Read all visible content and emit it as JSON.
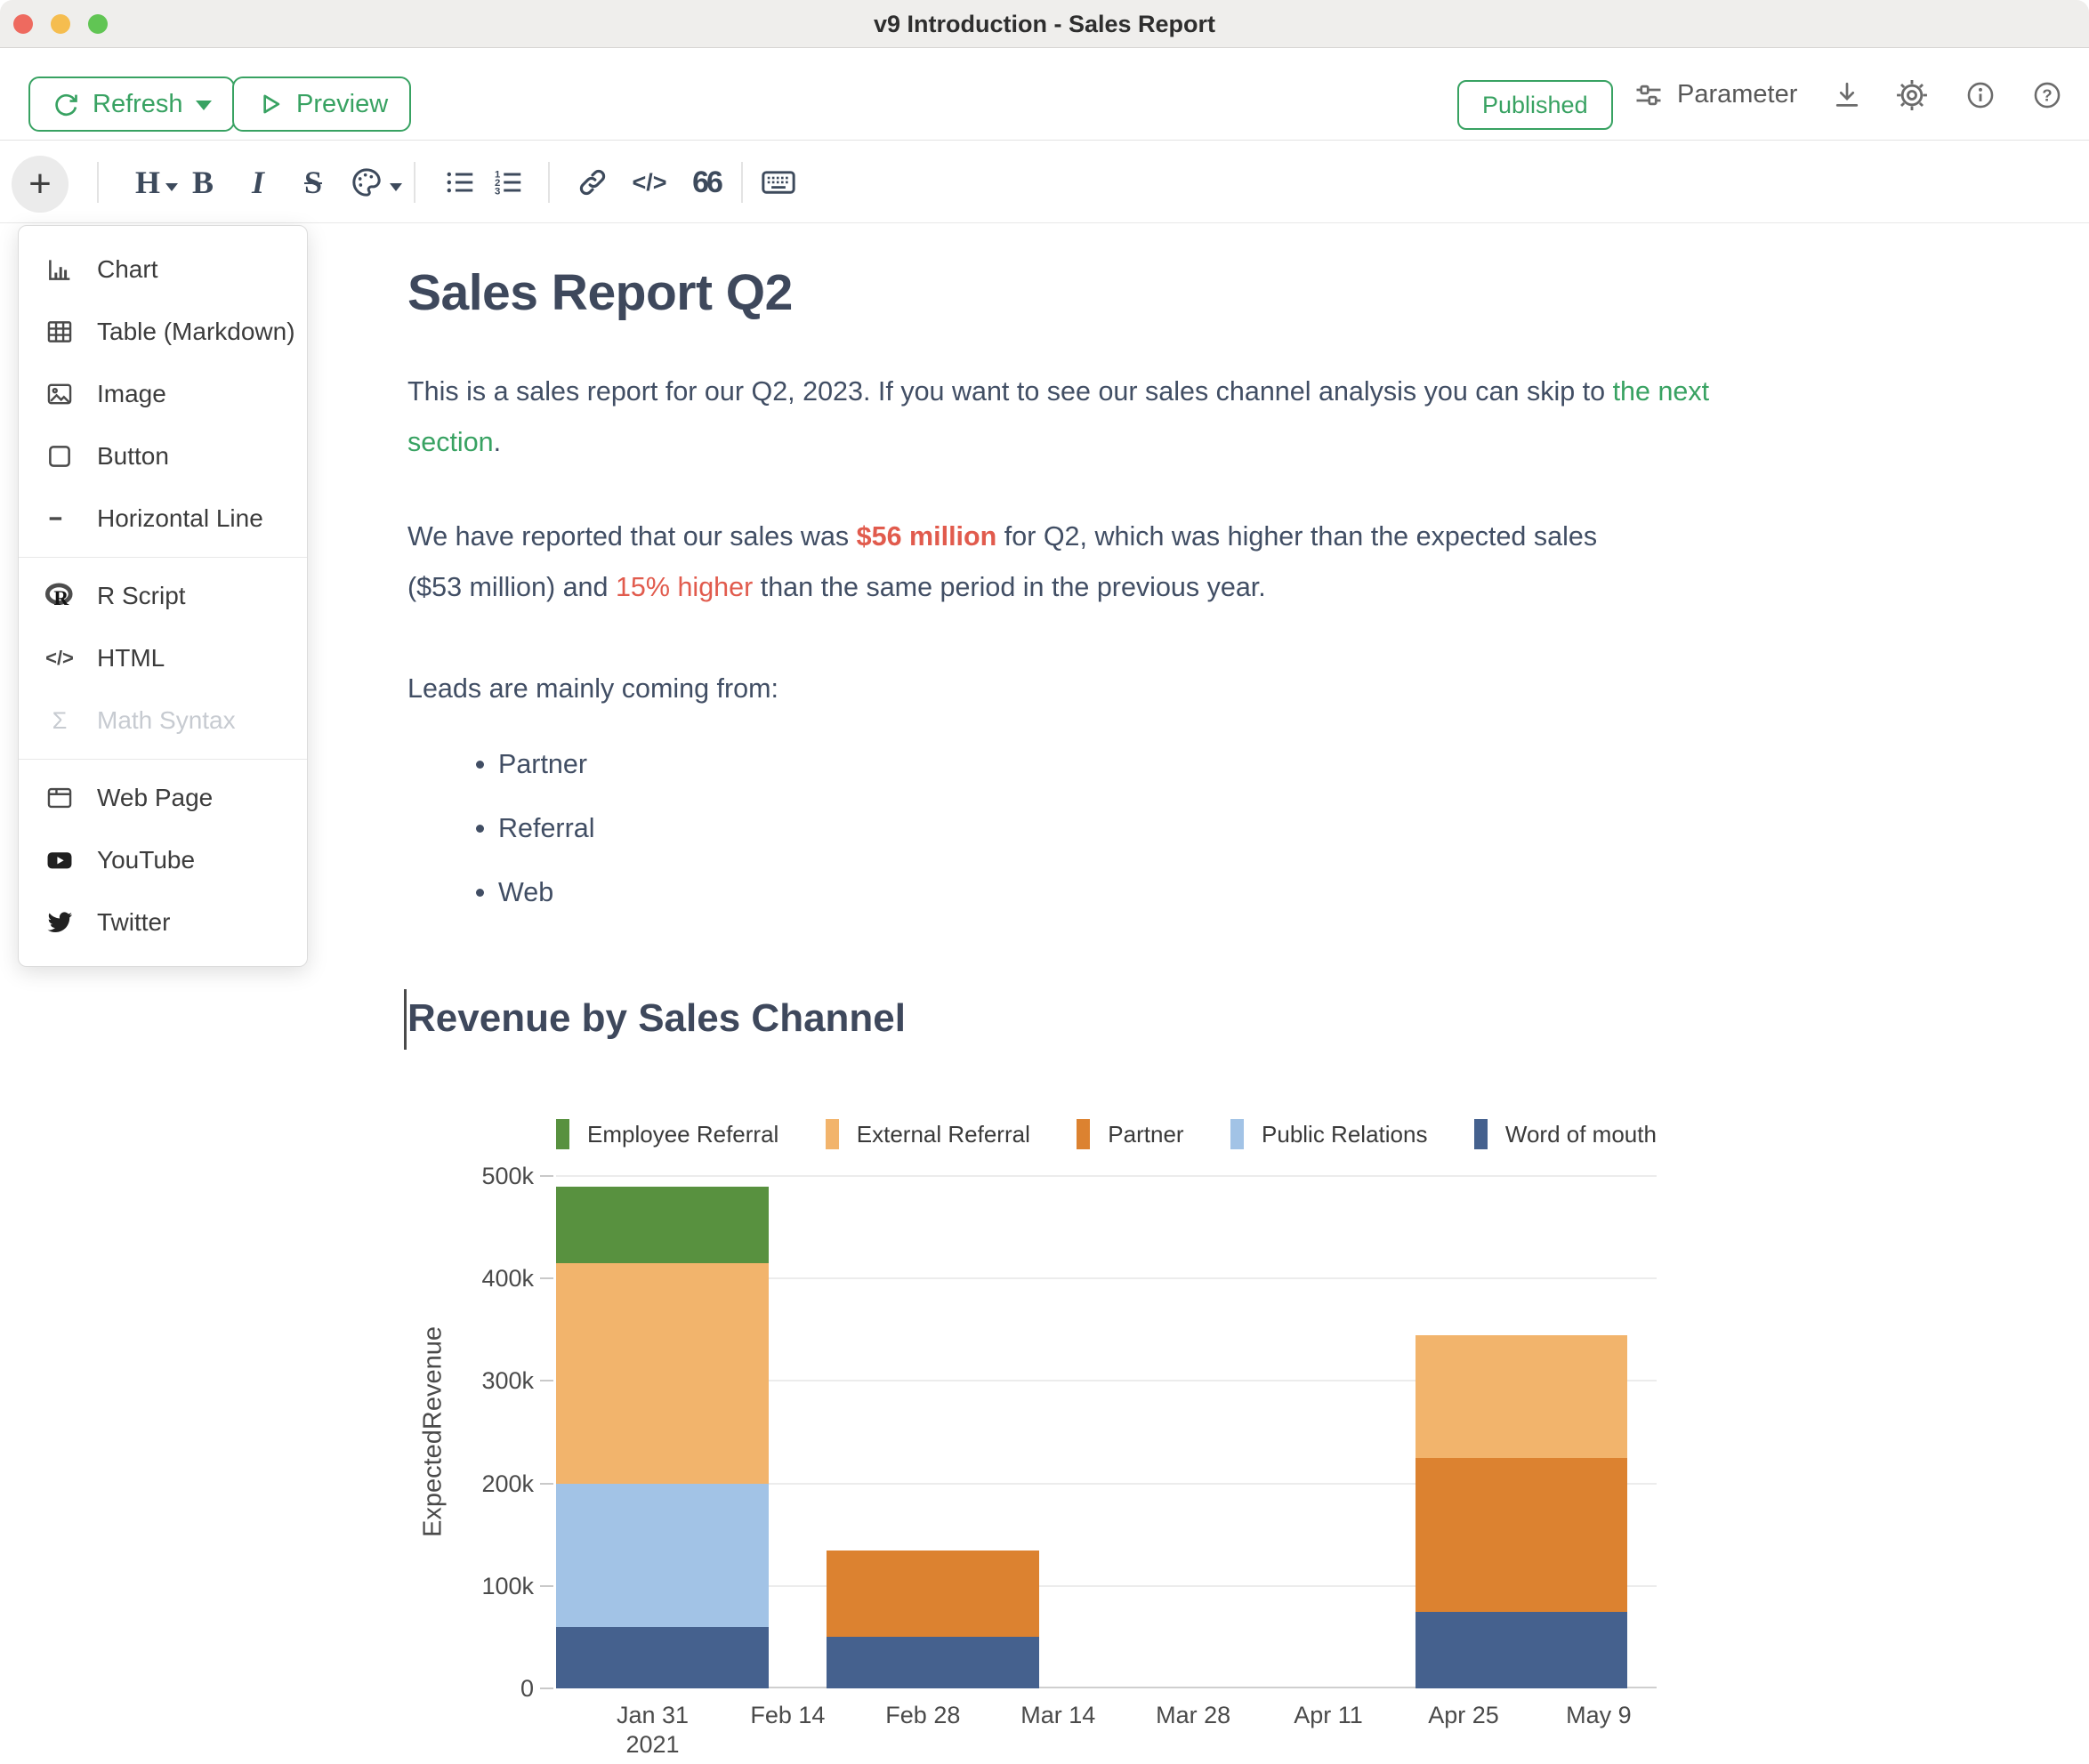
{
  "titlebar": {
    "title": "v9 Introduction - Sales Report"
  },
  "toolbar": {
    "refresh": "Refresh",
    "preview": "Preview",
    "published": "Published",
    "parameter": "Parameter"
  },
  "insert_menu": {
    "groups": [
      {
        "items": [
          {
            "label": "Chart"
          },
          {
            "label": "Table (Markdown)"
          },
          {
            "label": "Image"
          },
          {
            "label": "Button"
          },
          {
            "label": "Horizontal Line"
          }
        ]
      },
      {
        "items": [
          {
            "label": "R Script"
          },
          {
            "label": "HTML"
          },
          {
            "label": "Math Syntax",
            "disabled": true
          }
        ]
      },
      {
        "items": [
          {
            "label": "Web Page"
          },
          {
            "label": "YouTube"
          },
          {
            "label": "Twitter"
          }
        ]
      }
    ]
  },
  "document": {
    "title": "Sales Report Q2",
    "para1": {
      "before_link": "This is a sales report for our Q2, 2023. If you want to see our sales channel analysis you can skip to ",
      "link": "the next section",
      "after_link": "."
    },
    "para2": {
      "part1": "We have reported that our sales was ",
      "highlight1": "$56 million",
      "part2": " for Q2, which was higher than the expected sales ($53 million) and ",
      "highlight2": "15% higher",
      "part3": " than the same period in the previous year."
    },
    "para3": "Leads are mainly coming from:",
    "bullets": [
      "Partner",
      "Referral",
      "Web"
    ],
    "section_heading": "Revenue by Sales Channel"
  },
  "chart_data": {
    "type": "bar",
    "stacked": true,
    "title": "",
    "xlabel": "",
    "ylabel": "ExpectedRevenue",
    "ylim": [
      0,
      500000
    ],
    "grid": true,
    "legend_position": "top",
    "yticks": [
      {
        "v": 0,
        "label": "0"
      },
      {
        "v": 100000,
        "label": "100k"
      },
      {
        "v": 200000,
        "label": "200k"
      },
      {
        "v": 300000,
        "label": "300k"
      },
      {
        "v": 400000,
        "label": "400k"
      },
      {
        "v": 500000,
        "label": "500k"
      }
    ],
    "x_axis": {
      "start_date": "2021-01-21",
      "end_date": "2021-05-15",
      "total_days": 114,
      "ticks": [
        {
          "day": 10,
          "label": "Jan 31",
          "sublabel": "2021"
        },
        {
          "day": 24,
          "label": "Feb 14"
        },
        {
          "day": 38,
          "label": "Feb 28"
        },
        {
          "day": 52,
          "label": "Mar 14"
        },
        {
          "day": 66,
          "label": "Mar 28"
        },
        {
          "day": 80,
          "label": "Apr 11"
        },
        {
          "day": 94,
          "label": "Apr 25"
        },
        {
          "day": 108,
          "label": "May 9"
        }
      ]
    },
    "series_colors": {
      "Employee Referral": "#58913f",
      "External Referral": "#f2b46c",
      "Partner": "#dc8230",
      "Public Relations": "#a2c3e6",
      "Word of mouth": "#45618e"
    },
    "legend": [
      "Employee Referral",
      "External Referral",
      "Partner",
      "Public Relations",
      "Word of mouth"
    ],
    "bars": [
      {
        "period_start_day": 0,
        "period_end_day": 22,
        "total": 490000,
        "segments": [
          [
            "Word of mouth",
            60000
          ],
          [
            "Public Relations",
            140000
          ],
          [
            "External Referral",
            215000
          ],
          [
            "Employee Referral",
            75000
          ]
        ]
      },
      {
        "period_start_day": 28,
        "period_end_day": 50,
        "total": 135000,
        "segments": [
          [
            "Word of mouth",
            50000
          ],
          [
            "Partner",
            85000
          ]
        ]
      },
      {
        "period_start_day": 89,
        "period_end_day": 111,
        "total": 345000,
        "segments": [
          [
            "Word of mouth",
            75000
          ],
          [
            "Partner",
            150000
          ],
          [
            "External Referral",
            120000
          ]
        ]
      }
    ]
  }
}
